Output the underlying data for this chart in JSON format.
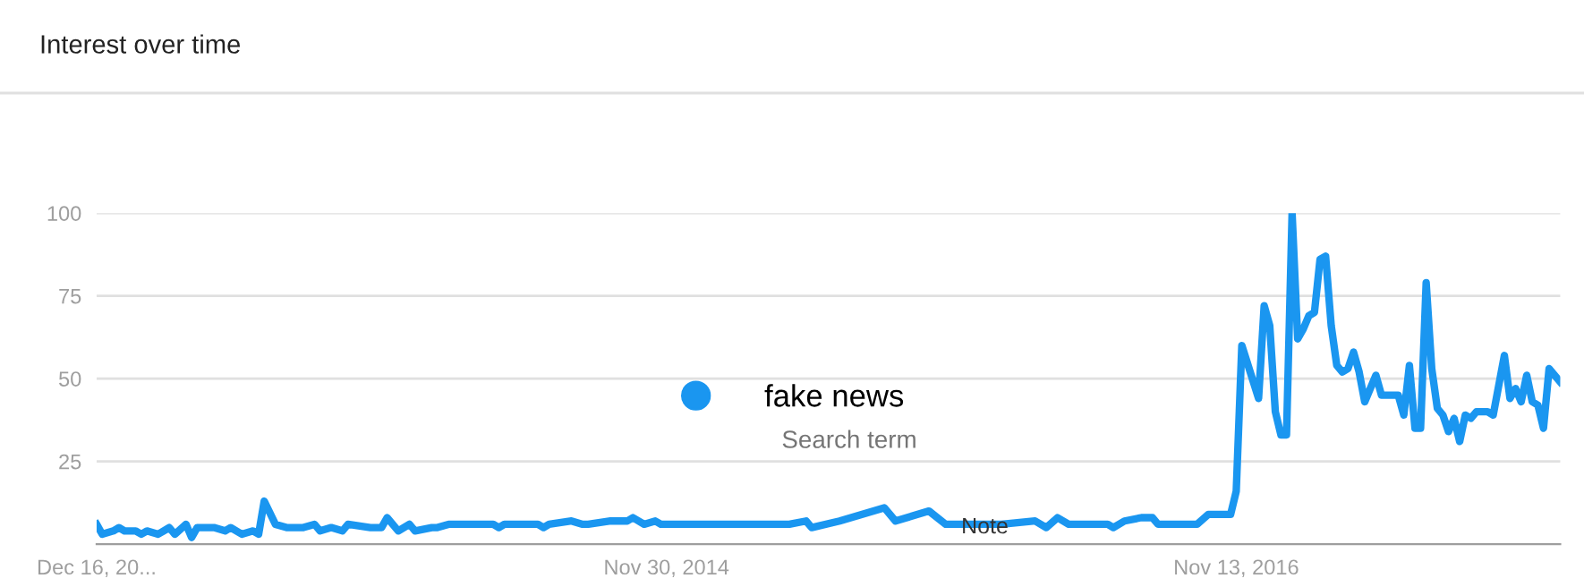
{
  "chart_data": {
    "type": "line",
    "title": "Interest over time",
    "x": [
      "2012-12-16",
      "2012-12-23",
      "2013-01-06",
      "2013-01-13",
      "2013-01-20",
      "2013-02-03",
      "2013-02-10",
      "2013-02-17",
      "2013-03-03",
      "2013-03-10",
      "2013-03-17",
      "2013-03-24",
      "2013-04-07",
      "2013-04-14",
      "2013-04-21",
      "2013-05-05",
      "2013-05-12",
      "2013-05-26",
      "2013-06-02",
      "2013-06-16",
      "2013-06-30",
      "2013-07-07",
      "2013-07-14",
      "2013-07-28",
      "2013-08-11",
      "2013-09-01",
      "2013-09-15",
      "2013-09-22",
      "2013-10-06",
      "2013-10-20",
      "2013-10-27",
      "2013-11-24",
      "2013-12-08",
      "2013-12-15",
      "2013-12-29",
      "2014-01-12",
      "2014-01-19",
      "2014-02-09",
      "2014-02-16",
      "2014-03-02",
      "2014-04-27",
      "2014-05-04",
      "2014-05-11",
      "2014-06-22",
      "2014-06-29",
      "2014-07-06",
      "2014-08-03",
      "2014-08-17",
      "2014-08-24",
      "2014-09-21",
      "2014-10-12",
      "2014-10-19",
      "2014-11-02",
      "2014-11-16",
      "2014-11-23",
      "2014-12-14",
      "2015-01-11",
      "2015-02-22",
      "2015-05-03",
      "2015-05-24",
      "2015-05-31",
      "2015-07-05",
      "2015-08-30",
      "2015-09-13",
      "2015-10-25",
      "2015-11-15",
      "2016-01-24",
      "2016-03-06",
      "2016-03-20",
      "2016-04-03",
      "2016-04-17",
      "2016-06-05",
      "2016-06-12",
      "2016-06-26",
      "2016-07-17",
      "2016-07-31",
      "2016-08-07",
      "2016-08-21",
      "2016-09-25",
      "2016-10-09",
      "2016-11-06",
      "2016-11-13",
      "2016-11-20",
      "2016-12-11",
      "2016-12-18",
      "2016-12-25",
      "2017-01-01",
      "2017-01-08",
      "2017-01-15",
      "2017-01-22",
      "2017-01-29",
      "2017-02-05",
      "2017-02-12",
      "2017-02-19",
      "2017-02-26",
      "2017-03-05",
      "2017-03-12",
      "2017-03-19",
      "2017-03-26",
      "2017-04-02",
      "2017-04-09",
      "2017-04-16",
      "2017-04-23",
      "2017-05-07",
      "2017-05-14",
      "2017-06-04",
      "2017-06-11",
      "2017-06-18",
      "2017-06-25",
      "2017-07-02",
      "2017-07-09",
      "2017-07-16",
      "2017-07-23",
      "2017-07-30",
      "2017-08-06",
      "2017-08-13",
      "2017-08-20",
      "2017-08-27",
      "2017-09-03",
      "2017-09-10",
      "2017-09-24",
      "2017-10-01",
      "2017-10-15",
      "2017-10-22",
      "2017-10-29",
      "2017-11-05",
      "2017-11-12",
      "2017-11-19",
      "2017-11-26",
      "2017-12-03",
      "2017-12-10",
      "2017-12-24"
    ],
    "series": [
      {
        "name": "fake news",
        "color": "#1a96f0",
        "values": [
          6,
          3,
          4,
          5,
          4,
          4,
          3,
          4,
          3,
          4,
          5,
          3,
          6,
          2,
          5,
          5,
          5,
          4,
          5,
          3,
          4,
          3,
          13,
          6,
          5,
          5,
          6,
          4,
          5,
          4,
          6,
          5,
          5,
          8,
          4,
          6,
          4,
          5,
          5,
          6,
          6,
          5,
          6,
          6,
          5,
          6,
          7,
          6,
          6,
          7,
          7,
          8,
          6,
          7,
          6,
          6,
          6,
          6,
          6,
          7,
          5,
          7,
          11,
          7,
          10,
          6,
          6,
          7,
          5,
          8,
          6,
          6,
          5,
          7,
          8,
          8,
          6,
          6,
          6,
          9,
          9,
          16,
          60,
          44,
          72,
          66,
          40,
          33,
          33,
          100,
          62,
          65,
          69,
          70,
          86,
          87,
          66,
          54,
          52,
          53,
          58,
          52,
          43,
          51,
          45,
          45,
          39,
          54,
          35,
          35,
          79,
          53,
          41,
          39,
          34,
          38,
          31,
          39,
          38,
          40,
          40,
          39,
          57,
          44,
          47,
          43,
          51,
          43,
          42,
          35,
          53,
          49
        ]
      }
    ],
    "xlim": [
      "2012-12-16",
      "2017-12-24"
    ],
    "xticks": [
      {
        "value": "2012-12-16",
        "label": "Dec 16, 20..."
      },
      {
        "value": "2014-11-30",
        "label": "Nov 30, 2014"
      },
      {
        "value": "2016-11-13",
        "label": "Nov 13, 2016"
      }
    ],
    "ylim": [
      0,
      100
    ],
    "yticks": [
      25,
      50,
      75,
      100
    ],
    "grid": "y",
    "legend": "center",
    "marker": "none",
    "line_style": "solid",
    "annotations": [
      "Search term",
      {
        "text": "Note",
        "x": "2016-01-03",
        "y": 5
      }
    ]
  }
}
